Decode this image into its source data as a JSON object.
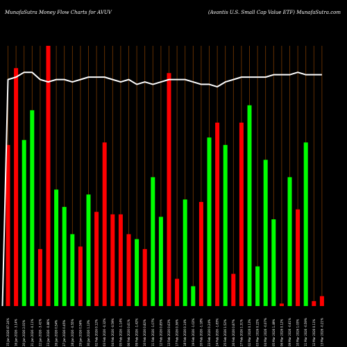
{
  "chart_data": {
    "type": "bar",
    "title_left": "MunafaSutra  Money Flow  Charts for AVUV",
    "title_right": "(Avantis U.S. Small Cap Value   ETF) MunafaSutra.com",
    "categories": [
      "15 Jan 2026 87.24% 94",
      "16 Jan 2026 -3.14% 95",
      "20 Jan 2026 2.01% 97",
      "21 Jan 2026 -0.11% 97",
      "22 Jan 2026 -3.41% 94",
      "23 Jan 2026 -0.88% 93",
      "26 Jan 2026 0.54% 94",
      "27 Jan 2026 0.45% 94",
      "28 Jan 2026 -0.55% 93",
      "29 Jan 2026 0.56% 94",
      "30 Jan 2026 1.13% 95",
      "02 Feb 2026 0.12% 95",
      "03 Feb 2026 -0.32% 95",
      "04 Feb 2026 -0.59% 94",
      "05 Feb 2026 -1.14% 93",
      "06 Feb 2026 0.61% 94",
      "09 Feb 2026 -1.42% 92",
      "10 Feb 2026 0.82% 93",
      "11 Feb 2026 -1.07% 92",
      "12 Feb 2026 0.85% 93",
      "13 Feb 2026 0.63% 94",
      "17 Feb 2026 0.36% 94",
      "18 Feb 2026 0.14% 94",
      "19 Feb 2026 -1.02% 93",
      "20 Feb 2026 -1.18% 92",
      "23 Feb 2026 0.24% 92",
      "24 Feb 2026 -1.83% 91",
      "25 Feb 2026 1.52% 93",
      "26 Feb 2026 0.87% 94",
      "27 Feb 2026 1.31% 95",
      "02 Mar 2026 0.13% 95",
      "03 Mar 2026 0.22% 95",
      "04 Mar 2026 -0.07% 95",
      "05 Mar 2026 1.49% 96",
      "06 Mar 2026 0.12% 96",
      "09 Mar 2026 -0.61% 96",
      "10 Mar 2026 1.03% 97",
      "11 Mar 2026 -0.59% 96",
      "12 Mar 2026 0.11% 96",
      "13 Mar 2026 -0.21% 96"
    ],
    "category_labels": [
      "15 Jan 2026 87.24%",
      "16 Jan 2026 -3.14%",
      "20 Jan 2026 2.01%",
      "21 Jan 2026 -0.11%",
      "22 Jan 2026 -3.41%",
      "23 Jan 2026 -0.88%",
      "26 Jan 2026 0.54%",
      "27 Jan 2026 0.45%",
      "28 Jan 2026 -0.55%",
      "29 Jan 2026 0.56%",
      "30 Jan 2026 1.13%",
      "02 Feb 2026 0.12%",
      "03 Feb 2026 -0.32%",
      "04 Feb 2026 -0.59%",
      "05 Feb 2026 -1.14%",
      "06 Feb 2026 0.61%",
      "09 Feb 2026 -1.42%",
      "10 Feb 2026 0.82%",
      "11 Feb 2026 -1.07%",
      "12 Feb 2026 0.85%",
      "13 Feb 2026 0.63%",
      "17 Feb 2026 0.36%",
      "18 Feb 2026 0.14%",
      "19 Feb 2026 -1.02%",
      "20 Feb 2026 -1.18%",
      "23 Feb 2026 0.24%",
      "24 Feb 2026 -1.83%",
      "25 Feb 2026 1.52%",
      "26 Feb 2026 0.87%",
      "27 Feb 2026 1.31%",
      "02 Mar 2026 0.13%",
      "03 Mar 2026 0.22%",
      "04 Mar 2026 -0.07%",
      "05 Mar 2026 1.49%",
      "06 Mar 2026 0.12%",
      "09 Mar 2026 -0.61%",
      "10 Mar 2026 1.03%",
      "11 Mar 2026 -0.59%",
      "12 Mar 2026 0.11%",
      "13 Mar 2026 -0.21%"
    ],
    "series": [
      {
        "values": [
          65,
          96,
          67,
          79,
          23,
          105,
          47,
          40,
          29,
          24,
          45,
          38,
          66,
          37,
          37,
          29,
          27,
          23,
          52,
          36,
          94,
          11,
          43,
          8,
          42,
          68,
          74,
          65,
          13,
          74,
          81,
          16,
          59,
          35,
          1,
          52,
          39,
          66,
          2,
          4
        ],
        "colors": [
          "#ff0000",
          "#ff0000",
          "#00ff00",
          "#00ff00",
          "#ff0000",
          "#ff0000",
          "#00ff00",
          "#00ff00",
          "#00ff00",
          "#ff0000",
          "#00ff00",
          "#ff0000",
          "#ff0000",
          "#ff0000",
          "#ff0000",
          "#ff0000",
          "#00ff00",
          "#ff0000",
          "#00ff00",
          "#00ff00",
          "#ff0000",
          "#ff0000",
          "#00ff00",
          "#00ff00",
          "#ff0000",
          "#00ff00",
          "#ff0000",
          "#00ff00",
          "#ff0000",
          "#ff0000",
          "#00ff00",
          "#00ff00",
          "#00ff00",
          "#00ff00",
          "#ff0000",
          "#00ff00",
          "#ff0000",
          "#00ff00",
          "#ff0000",
          "#ff0000"
        ]
      },
      {
        "values": [
          94,
          95,
          97,
          97,
          94,
          93,
          94,
          94,
          93,
          94,
          95,
          95,
          95,
          94,
          93,
          94,
          92,
          93,
          92,
          93,
          94,
          94,
          94,
          93,
          92,
          92,
          91,
          93,
          94,
          95,
          95,
          95,
          95,
          96,
          96,
          96,
          97,
          96,
          96,
          96
        ]
      }
    ],
    "bar_ylim": [
      0,
      105
    ],
    "line_ylim": [
      0,
      108
    ],
    "grid": "vertical",
    "grid_color": "#7a3a00"
  }
}
